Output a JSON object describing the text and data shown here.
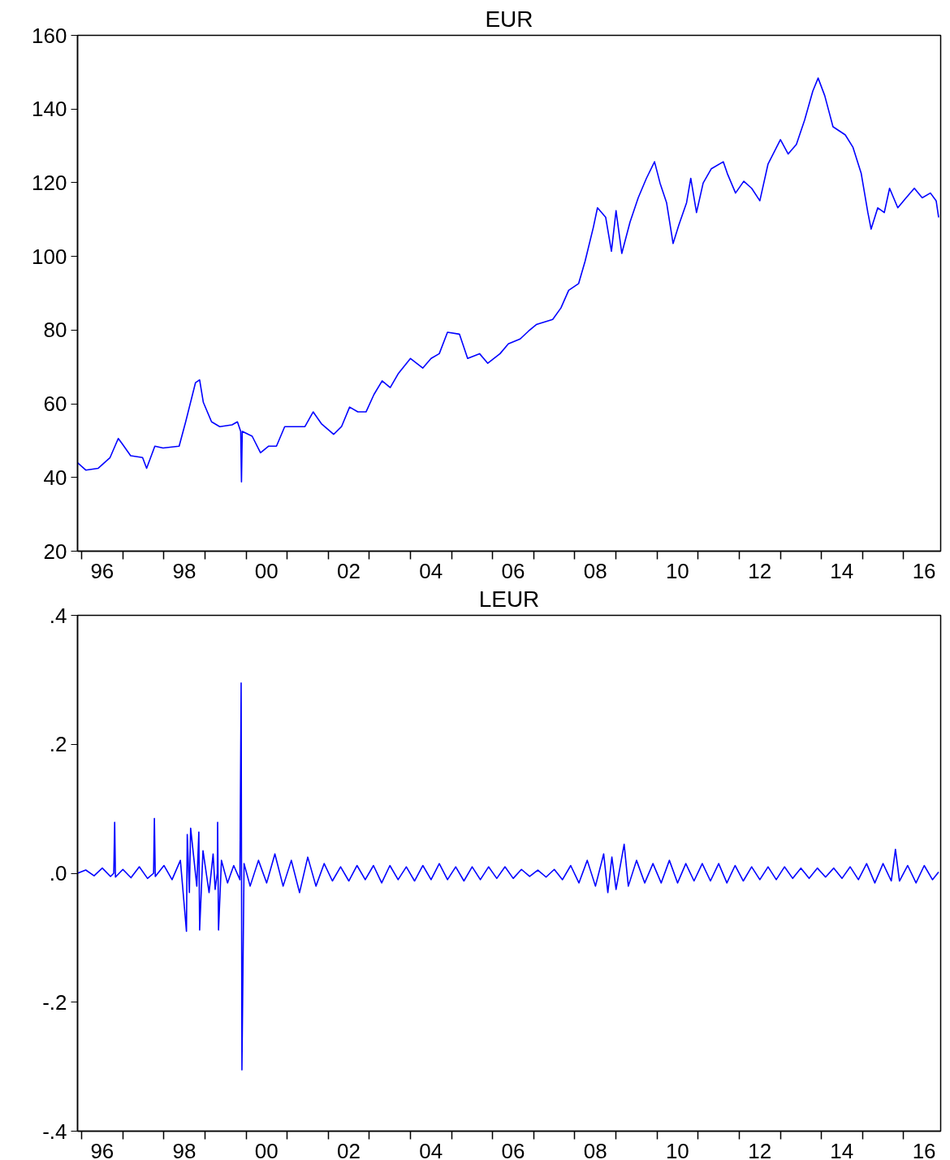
{
  "chart_data": [
    {
      "type": "line",
      "title": "EUR",
      "xlim": [
        "1995-11-25",
        "2016-11-25"
      ],
      "ylim": [
        20,
        160
      ],
      "yticks": [
        20,
        40,
        60,
        80,
        100,
        120,
        140,
        160
      ],
      "xticks": [
        {
          "value": "1996-01-01",
          "label": null
        },
        {
          "value": "1996-07-01",
          "label": "96"
        },
        {
          "value": "1997-01-01",
          "label": null
        },
        {
          "value": "1998-01-01",
          "label": null
        },
        {
          "value": "1998-07-01",
          "label": "98"
        },
        {
          "value": "1999-01-01",
          "label": null
        },
        {
          "value": "2000-01-01",
          "label": null
        },
        {
          "value": "2000-07-01",
          "label": "00"
        },
        {
          "value": "2001-01-01",
          "label": null
        },
        {
          "value": "2002-01-01",
          "label": null
        },
        {
          "value": "2002-07-01",
          "label": "02"
        },
        {
          "value": "2003-01-01",
          "label": null
        },
        {
          "value": "2004-01-01",
          "label": null
        },
        {
          "value": "2004-07-01",
          "label": "04"
        },
        {
          "value": "2005-01-01",
          "label": null
        },
        {
          "value": "2006-01-01",
          "label": null
        },
        {
          "value": "2006-07-01",
          "label": "06"
        },
        {
          "value": "2007-01-01",
          "label": null
        },
        {
          "value": "2008-01-01",
          "label": null
        },
        {
          "value": "2008-07-01",
          "label": "08"
        },
        {
          "value": "2009-01-01",
          "label": null
        },
        {
          "value": "2010-01-01",
          "label": null
        },
        {
          "value": "2010-07-01",
          "label": "10"
        },
        {
          "value": "2011-01-01",
          "label": null
        },
        {
          "value": "2012-01-01",
          "label": null
        },
        {
          "value": "2012-07-01",
          "label": "12"
        },
        {
          "value": "2013-01-01",
          "label": null
        },
        {
          "value": "2014-01-01",
          "label": null
        },
        {
          "value": "2014-07-01",
          "label": "14"
        },
        {
          "value": "2015-01-01",
          "label": null
        },
        {
          "value": "2016-01-01",
          "label": null
        },
        {
          "value": "2016-07-01",
          "label": "16"
        }
      ],
      "series": [
        {
          "color": "#0000ff",
          "x": [
            "1995-11-25",
            "1996-02-06",
            "1996-05-27",
            "1996-09-09",
            "1996-11-21",
            "1996-12-27",
            "1997-03-11",
            "1997-06-25",
            "1997-07-31",
            "1997-10-12",
            "1997-12-24",
            "1998-05-16",
            "1998-07-13",
            "1998-10-08",
            "1998-11-14",
            "1998-12-17",
            "1999-02-28",
            "1999-05-12",
            "1999-08-29",
            "1999-10-16",
            "1999-11-14",
            "1999-11-21",
            "1999-11-28",
            "2000-02-24",
            "2000-05-08",
            "2000-07-20",
            "2000-09-27",
            "2000-12-09",
            "2001-02-21",
            "2001-06-07",
            "2001-08-19",
            "2001-10-31",
            "2002-02-17",
            "2002-04-28",
            "2002-07-09",
            "2002-09-20",
            "2002-12-02",
            "2003-02-10",
            "2003-04-24",
            "2003-07-05",
            "2003-09-17",
            "2004-01-01",
            "2004-04-20",
            "2004-07-02",
            "2004-09-13",
            "2004-11-25",
            "2005-03-11",
            "2005-05-23",
            "2005-09-06",
            "2005-11-18",
            "2006-03-07",
            "2006-05-20",
            "2006-09-02",
            "2006-11-14",
            "2007-01-23",
            "2007-06-18",
            "2007-08-30",
            "2007-11-07",
            "2008-02-03",
            "2008-04-01",
            "2008-06-14",
            "2008-07-20",
            "2008-10-01",
            "2008-11-21",
            "2009-01-01",
            "2009-02-21",
            "2009-05-05",
            "2009-07-17",
            "2009-09-28",
            "2009-12-09",
            "2010-01-27",
            "2010-03-26",
            "2010-05-23",
            "2010-07-13",
            "2010-09-20",
            "2010-10-27",
            "2010-12-17",
            "2011-02-14",
            "2011-04-28",
            "2011-08-12",
            "2011-09-17",
            "2011-11-29",
            "2012-02-10",
            "2012-04-20",
            "2012-07-02",
            "2012-09-13",
            "2013-01-01",
            "2013-03-11",
            "2013-05-23",
            "2013-08-04",
            "2013-10-16",
            "2013-12-02",
            "2014-01-30",
            "2014-04-13",
            "2014-07-31",
            "2014-10-08",
            "2014-12-20",
            "2015-02-17",
            "2015-03-18",
            "2015-05-16",
            "2015-07-13",
            "2015-08-29",
            "2015-11-10",
            "2016-01-23",
            "2016-04-05",
            "2016-06-14",
            "2016-08-26",
            "2016-10-16",
            "2016-11-07"
          ],
          "values": [
            44.0,
            42.0,
            42.5,
            45.4,
            50.6,
            49.1,
            45.9,
            45.4,
            42.5,
            48.5,
            48.0,
            48.5,
            55.1,
            65.7,
            66.5,
            60.4,
            55.1,
            53.8,
            54.3,
            55.1,
            52.5,
            38.8,
            52.5,
            51.2,
            46.7,
            48.5,
            48.5,
            53.8,
            53.8,
            53.8,
            57.8,
            54.6,
            51.7,
            53.8,
            59.1,
            57.8,
            57.8,
            62.5,
            66.2,
            64.4,
            68.3,
            72.3,
            69.7,
            72.3,
            73.6,
            79.4,
            78.9,
            72.3,
            73.6,
            71.0,
            73.6,
            76.3,
            77.6,
            79.7,
            81.5,
            82.9,
            86.0,
            90.8,
            92.6,
            98.7,
            108.0,
            113.2,
            110.6,
            101.4,
            112.4,
            100.8,
            109.3,
            115.9,
            121.2,
            125.7,
            119.9,
            114.6,
            103.5,
            108.5,
            114.6,
            121.2,
            111.9,
            119.9,
            123.8,
            125.7,
            122.5,
            117.2,
            120.4,
            118.5,
            115.1,
            125.1,
            131.7,
            127.8,
            130.4,
            137.0,
            144.9,
            148.4,
            143.6,
            135.2,
            133.0,
            129.6,
            122.5,
            111.9,
            107.4,
            113.2,
            111.9,
            118.5,
            113.2,
            115.9,
            118.5,
            115.9,
            117.2,
            115.1,
            110.6
          ]
        }
      ]
    },
    {
      "type": "line",
      "title": "LEUR",
      "xlim": [
        "1995-11-25",
        "2016-11-25"
      ],
      "ylim": [
        -0.4,
        0.4
      ],
      "yticks": [
        {
          "value": -0.4,
          "label": "-.4"
        },
        {
          "value": -0.2,
          "label": "-.2"
        },
        {
          "value": 0,
          "label": ".0"
        },
        {
          "value": 0.2,
          "label": ".2"
        },
        {
          "value": 0.4,
          "label": ".4"
        }
      ],
      "xticks": [
        {
          "value": "1996-01-01",
          "label": null
        },
        {
          "value": "1996-07-01",
          "label": "96"
        },
        {
          "value": "1997-01-01",
          "label": null
        },
        {
          "value": "1998-01-01",
          "label": null
        },
        {
          "value": "1998-07-01",
          "label": "98"
        },
        {
          "value": "1999-01-01",
          "label": null
        },
        {
          "value": "2000-01-01",
          "label": null
        },
        {
          "value": "2000-07-01",
          "label": "00"
        },
        {
          "value": "2001-01-01",
          "label": null
        },
        {
          "value": "2002-01-01",
          "label": null
        },
        {
          "value": "2002-07-01",
          "label": "02"
        },
        {
          "value": "2003-01-01",
          "label": null
        },
        {
          "value": "2004-01-01",
          "label": null
        },
        {
          "value": "2004-07-01",
          "label": "04"
        },
        {
          "value": "2005-01-01",
          "label": null
        },
        {
          "value": "2006-01-01",
          "label": null
        },
        {
          "value": "2006-07-01",
          "label": "06"
        },
        {
          "value": "2007-01-01",
          "label": null
        },
        {
          "value": "2008-01-01",
          "label": null
        },
        {
          "value": "2008-07-01",
          "label": "08"
        },
        {
          "value": "2009-01-01",
          "label": null
        },
        {
          "value": "2010-01-01",
          "label": null
        },
        {
          "value": "2010-07-01",
          "label": "10"
        },
        {
          "value": "2011-01-01",
          "label": null
        },
        {
          "value": "2012-01-01",
          "label": null
        },
        {
          "value": "2012-07-01",
          "label": "12"
        },
        {
          "value": "2013-01-01",
          "label": null
        },
        {
          "value": "2014-01-01",
          "label": null
        },
        {
          "value": "2014-07-01",
          "label": "14"
        },
        {
          "value": "2015-01-01",
          "label": null
        },
        {
          "value": "2016-01-01",
          "label": null
        },
        {
          "value": "2016-07-01",
          "label": "16"
        }
      ],
      "series": [
        {
          "color": "#0000ff",
          "x": [
            "1995-11-25",
            "1996-02-06",
            "1996-04-20",
            "1996-07-02",
            "1996-09-13",
            "1996-10-12",
            "1996-10-20",
            "1996-10-27",
            "1997-01-01",
            "1997-03-14",
            "1997-05-27",
            "1997-08-08",
            "1997-10-01",
            "1997-10-08",
            "1997-10-16",
            "1998-01-01",
            "1998-03-14",
            "1998-05-27",
            "1998-07-20",
            "1998-07-27",
            "1998-08-15",
            "1998-08-26",
            "1998-10-20",
            "1998-11-07",
            "1998-11-14",
            "1998-12-14",
            "1999-02-06",
            "1999-03-14",
            "1999-04-01",
            "1999-04-20",
            "1999-04-23",
            "1999-05-01",
            "1999-05-27",
            "1999-07-20",
            "1999-09-13",
            "1999-11-07",
            "1999-11-18",
            "1999-11-25",
            "1999-12-14",
            "2000-02-06",
            "2000-04-20",
            "2000-07-02",
            "2000-09-13",
            "2000-11-25",
            "2001-02-06",
            "2001-04-20",
            "2001-07-02",
            "2001-09-13",
            "2001-11-25",
            "2002-02-06",
            "2002-04-20",
            "2002-07-02",
            "2002-09-13",
            "2002-11-25",
            "2003-02-06",
            "2003-04-20",
            "2003-07-02",
            "2003-09-13",
            "2003-11-25",
            "2004-02-06",
            "2004-04-20",
            "2004-07-02",
            "2004-09-13",
            "2004-11-25",
            "2005-02-06",
            "2005-04-20",
            "2005-07-02",
            "2005-09-13",
            "2005-11-25",
            "2006-02-06",
            "2006-04-20",
            "2006-07-02",
            "2006-09-13",
            "2006-11-25",
            "2007-02-06",
            "2007-04-20",
            "2007-07-02",
            "2007-09-13",
            "2007-11-25",
            "2008-02-06",
            "2008-04-20",
            "2008-07-02",
            "2008-09-13",
            "2008-10-20",
            "2008-11-25",
            "2009-01-01",
            "2009-03-14",
            "2009-04-20",
            "2009-07-02",
            "2009-09-13",
            "2009-11-25",
            "2010-02-06",
            "2010-04-20",
            "2010-07-02",
            "2010-09-13",
            "2010-11-25",
            "2011-02-06",
            "2011-04-20",
            "2011-07-02",
            "2011-09-13",
            "2011-11-25",
            "2012-02-06",
            "2012-04-20",
            "2012-07-02",
            "2012-09-13",
            "2012-11-25",
            "2013-02-06",
            "2013-04-20",
            "2013-07-02",
            "2013-09-13",
            "2013-11-25",
            "2014-02-06",
            "2014-04-20",
            "2014-07-02",
            "2014-09-13",
            "2014-11-25",
            "2015-02-06",
            "2015-04-20",
            "2015-07-02",
            "2015-09-13",
            "2015-10-20",
            "2015-11-25",
            "2016-02-06",
            "2016-04-20",
            "2016-07-02",
            "2016-09-13",
            "2016-11-07"
          ],
          "values": [
            0.0,
            0.005,
            -0.004,
            0.008,
            -0.005,
            0.0,
            0.079,
            -0.006,
            0.006,
            -0.007,
            0.01,
            -0.008,
            0.0,
            0.085,
            -0.005,
            0.012,
            -0.01,
            0.02,
            -0.09,
            0.06,
            -0.03,
            0.07,
            -0.02,
            0.064,
            -0.088,
            0.035,
            -0.03,
            0.03,
            -0.025,
            0.0,
            0.079,
            -0.088,
            0.02,
            -0.015,
            0.012,
            -0.01,
            0.295,
            -0.305,
            0.015,
            -0.02,
            0.02,
            -0.015,
            0.03,
            -0.02,
            0.02,
            -0.03,
            0.025,
            -0.02,
            0.015,
            -0.012,
            0.01,
            -0.012,
            0.012,
            -0.01,
            0.012,
            -0.015,
            0.012,
            -0.01,
            0.01,
            -0.012,
            0.012,
            -0.01,
            0.015,
            -0.01,
            0.01,
            -0.012,
            0.01,
            -0.01,
            0.01,
            -0.008,
            0.01,
            -0.008,
            0.006,
            -0.005,
            0.005,
            -0.006,
            0.006,
            -0.01,
            0.012,
            -0.015,
            0.02,
            -0.02,
            0.03,
            -0.03,
            0.025,
            -0.025,
            0.045,
            -0.02,
            0.02,
            -0.015,
            0.015,
            -0.015,
            0.02,
            -0.015,
            0.015,
            -0.012,
            0.015,
            -0.012,
            0.015,
            -0.015,
            0.012,
            -0.012,
            0.01,
            -0.01,
            0.01,
            -0.01,
            0.01,
            -0.008,
            0.008,
            -0.008,
            0.008,
            -0.006,
            0.008,
            -0.008,
            0.01,
            -0.01,
            0.015,
            -0.015,
            0.015,
            -0.012,
            0.037,
            -0.012,
            0.012,
            -0.015,
            0.012,
            -0.01,
            0.002
          ]
        }
      ]
    }
  ]
}
